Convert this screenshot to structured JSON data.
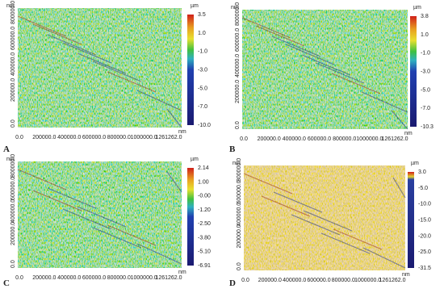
{
  "panels": [
    {
      "label": "A",
      "y_unit": "nm",
      "x_unit": "nm",
      "z_unit": "µm",
      "x_ticks": [
        "0.0",
        "200000.0",
        "400000.0",
        "600000.0",
        "800000.0",
        "1000000.0",
        "1261262.0"
      ],
      "y_ticks": [
        "0.0",
        "200000.0",
        "400000.0",
        "600000.0",
        "800000.0"
      ],
      "colorbar_ticks": [
        "3.5",
        "1.0",
        "-1.0",
        "-3.0",
        "-5.0",
        "-7.0",
        "-10.0"
      ]
    },
    {
      "label": "B",
      "y_unit": "nm",
      "x_unit": "nm",
      "z_unit": "µm",
      "x_ticks": [
        "0.0",
        "200000.0",
        "400000.0",
        "600000.0",
        "800000.0",
        "1000000.0",
        "1261262.0"
      ],
      "y_ticks": [
        "0.0",
        "200000.0",
        "400000.0",
        "600000.0",
        "800000.0"
      ],
      "colorbar_ticks": [
        "3.8",
        "1.0",
        "-1.0",
        "-3.0",
        "-5.0",
        "-7.0",
        "-10.3"
      ]
    },
    {
      "label": "C",
      "y_unit": "nm",
      "x_unit": "nm",
      "z_unit": "µm",
      "x_ticks": [
        "0.0",
        "200000.0",
        "400000.0",
        "600000.0",
        "800000.0",
        "1000000.0",
        "1261262.0"
      ],
      "y_ticks": [
        "0.0",
        "200000.0",
        "400000.0",
        "600000.0",
        "800000.0"
      ],
      "colorbar_ticks": [
        "2.14",
        "1.00",
        "-0.00",
        "-1.20",
        "-2.50",
        "-3.80",
        "-5.10",
        "-6.91"
      ]
    },
    {
      "label": "D",
      "y_unit": "nm",
      "x_unit": "nm",
      "z_unit": "µm",
      "x_ticks": [
        "0.0",
        "200000.0",
        "400000.0",
        "600000.0",
        "800000.0",
        "1000000.0",
        "1261262.0"
      ],
      "y_ticks": [
        "0.0",
        "200000.0",
        "400000.0",
        "600000.0",
        "800000.0"
      ],
      "colorbar_ticks": [
        "3.0",
        "-5.0",
        "-10.0",
        "-15.0",
        "-20.0",
        "-25.0",
        "-31.5"
      ]
    }
  ]
}
